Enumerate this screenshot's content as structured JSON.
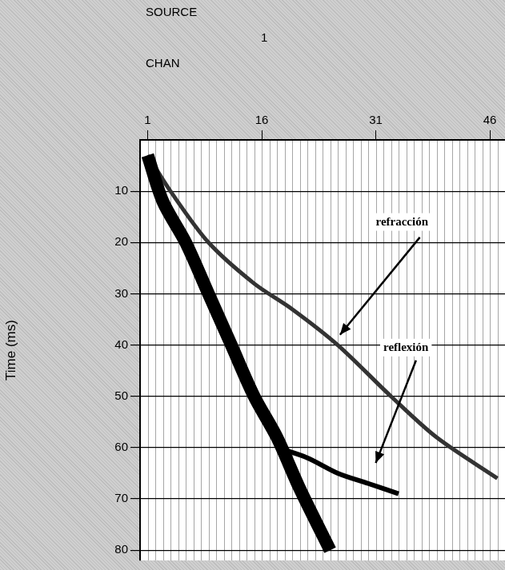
{
  "chart_data": {
    "type": "line",
    "source_label": "SOURCE",
    "source": 1,
    "x_label": "CHAN",
    "y_label": "Time (ms)",
    "xlim": [
      0,
      48
    ],
    "xticks": [
      1,
      16,
      31,
      46
    ],
    "ylim": [
      0,
      82
    ],
    "yticks": [
      10,
      20,
      30,
      40,
      50,
      60,
      70,
      80
    ],
    "grid": true,
    "series": [
      {
        "color": "#000000",
        "x": [
          1,
          3,
          6,
          9,
          12,
          15,
          18,
          21,
          25
        ],
        "values": [
          3,
          12,
          20,
          30,
          40,
          50,
          58,
          68,
          80
        ]
      },
      {
        "color": "#333333",
        "x": [
          1,
          4,
          9,
          15,
          20,
          26,
          33,
          39,
          47
        ],
        "values": [
          3,
          10,
          20,
          28,
          33,
          40,
          50,
          58,
          66
        ]
      },
      {
        "color": "#000000",
        "x": [
          18,
          22,
          26,
          30,
          34
        ],
        "values": [
          60,
          62,
          65,
          67,
          69
        ]
      }
    ],
    "annotations": [
      {
        "text": "refracción",
        "x": 31,
        "y": 16,
        "arrow_from": [
          36.8,
          19
        ],
        "arrow_to": [
          26.3,
          38
        ]
      },
      {
        "text": "reflexión",
        "x": 32,
        "y": 40.5,
        "arrow_from": [
          36.3,
          43
        ],
        "arrow_to": [
          31,
          63
        ]
      }
    ]
  }
}
